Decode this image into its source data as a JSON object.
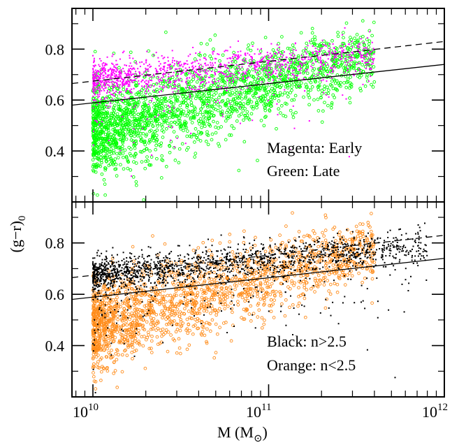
{
  "chart_data": {
    "type": "scatter",
    "shared": {
      "xlabel_main": "M (M",
      "xlabel_sub": "⊙",
      "xlabel_close": ")",
      "ylabel_main": "(g−r)",
      "ylabel_sub": "0",
      "x_scale": "log",
      "xlim": [
        7600000000.0,
        1000000000000.0
      ],
      "x_ticks": [
        {
          "value": 10000000000.0,
          "base": "10",
          "exp": "10"
        },
        {
          "value": 100000000000.0,
          "base": "10",
          "exp": "11"
        },
        {
          "value": 1000000000000.0,
          "base": "10",
          "exp": "12"
        }
      ],
      "lines": [
        {
          "name": "solid",
          "style": "solid",
          "x": [
            7600000000.0,
            1000000000000.0
          ],
          "y": [
            0.58,
            0.74
          ]
        },
        {
          "name": "dashed",
          "style": "dashed",
          "x": [
            7600000000.0,
            1000000000000.0
          ],
          "y": [
            0.665,
            0.83
          ]
        }
      ]
    },
    "panels": [
      {
        "id": "top",
        "ylim": [
          0.2,
          0.96
        ],
        "y_ticks": [
          0.4,
          0.6,
          0.8
        ],
        "y_tick_labels": [
          "0.4",
          "0.6",
          "0.8"
        ],
        "annotations": [
          "Magenta: Early",
          "Green: Late"
        ],
        "series": [
          {
            "marker": "open-circle",
            "color": "#00ff00",
            "count": 2200,
            "x_range": [
              10000000000.0,
              400000000000.0
            ],
            "ridge": [
              0.42,
              0.72
            ]
          },
          {
            "marker": "dot",
            "color": "#ff00ff",
            "count": 1300,
            "x_range": [
              10000000000.0,
              400000000000.0
            ],
            "ridge": [
              0.68,
              0.78
            ]
          }
        ]
      },
      {
        "id": "bottom",
        "ylim": [
          0.2,
          0.96
        ],
        "y_ticks": [
          0.4,
          0.6,
          0.8
        ],
        "y_tick_labels": [
          "0.4",
          "0.6",
          "0.8"
        ],
        "annotations": [
          "Black: n>2.5",
          "Orange: n<2.5"
        ],
        "series": [
          {
            "marker": "open-circle",
            "color": "#ff8c1a",
            "count": 1900,
            "x_range": [
              10000000000.0,
              400000000000.0
            ],
            "ridge": [
              0.42,
              0.72
            ]
          },
          {
            "marker": "dot",
            "color": "#000000",
            "count": 1700,
            "x_range": [
              10000000000.0,
              800000000000.0
            ],
            "ridge": [
              0.68,
              0.79
            ]
          }
        ]
      }
    ]
  }
}
